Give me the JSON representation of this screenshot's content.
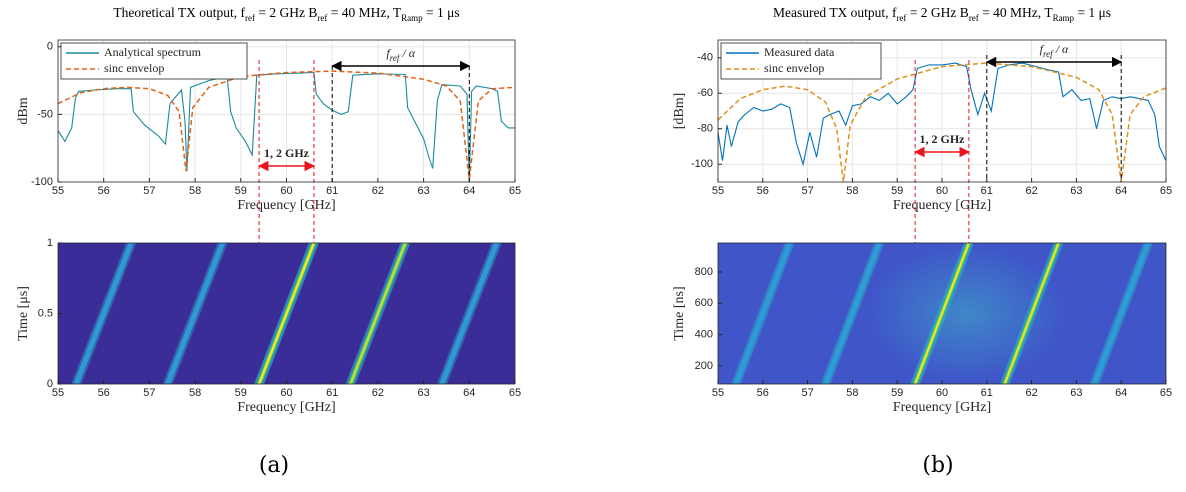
{
  "chart_data": [
    {
      "type": "line",
      "title_parts": [
        {
          "text": "Theoretical TX output, "
        },
        {
          "text": "f"
        },
        {
          "text": "ref",
          "sub": true
        },
        {
          "text": " = 2 GHz "
        },
        {
          "text": "B"
        },
        {
          "text": "ref",
          "sub": true
        },
        {
          "text": " = 40 MHz, "
        },
        {
          "text": "T"
        },
        {
          "text": "Ramp",
          "sub": true
        },
        {
          "text": " = 1 μs"
        }
      ],
      "xlabel": "Frequency [GHz]",
      "ylabel": "dBm",
      "xlim": [
        55,
        65
      ],
      "xticks": [
        55,
        56,
        57,
        58,
        59,
        60,
        61,
        62,
        63,
        64,
        65
      ],
      "ylim": [
        -100,
        5
      ],
      "yticks": [
        -100,
        -50,
        0
      ],
      "grid": true,
      "legend": "upper left",
      "series": [
        {
          "name": "Analytical spectrum",
          "color": "#1a8a9e",
          "dashed": false,
          "x": [
            55.0,
            55.15,
            55.3,
            55.38,
            55.45,
            55.8,
            56.3,
            56.6,
            56.65,
            56.9,
            57.2,
            57.35,
            57.45,
            57.7,
            57.78,
            57.82,
            57.9,
            58.3,
            58.7,
            58.78,
            58.9,
            59.1,
            59.25,
            59.35,
            59.8,
            60.3,
            60.6,
            60.65,
            60.8,
            61.0,
            61.2,
            61.35,
            61.45,
            62.0,
            62.6,
            62.65,
            62.8,
            63.0,
            63.1,
            63.2,
            63.3,
            63.4,
            63.8,
            63.95,
            64.0,
            64.05,
            64.15,
            64.5,
            64.62,
            64.7,
            64.85,
            65.0
          ],
          "values": [
            -62,
            -70,
            -60,
            -38,
            -33,
            -32,
            -31,
            -31,
            -48,
            -58,
            -66,
            -72,
            -42,
            -32,
            -55,
            -92,
            -30,
            -25,
            -22,
            -48,
            -60,
            -70,
            -80,
            -21,
            -20,
            -19.5,
            -19,
            -35,
            -42,
            -47,
            -50,
            -48,
            -21,
            -20,
            -20.5,
            -45,
            -55,
            -68,
            -80,
            -90,
            -40,
            -28,
            -29,
            -35,
            -100,
            -33,
            -29,
            -31,
            -33,
            -55,
            -60,
            -60
          ]
        },
        {
          "name": "sinc envelop",
          "color": "#e0621b",
          "dashed": true,
          "x": [
            55.0,
            55.5,
            56.0,
            56.5,
            57.0,
            57.4,
            57.65,
            57.8,
            57.95,
            58.3,
            59.0,
            60.0,
            61.0,
            62.0,
            63.0,
            63.5,
            63.8,
            64.0,
            64.2,
            64.5,
            65.0
          ],
          "values": [
            -42,
            -34,
            -31,
            -30,
            -31,
            -36,
            -48,
            -92,
            -45,
            -30,
            -22,
            -19,
            -18,
            -19.5,
            -24,
            -29,
            -40,
            -98,
            -40,
            -31,
            -30
          ]
        }
      ],
      "annotations": [
        {
          "parts": [
            {
              "text": "1, 2 GHz"
            }
          ],
          "span": [
            59.4,
            60.6
          ],
          "color": "#e8141e"
        },
        {
          "parts": [
            {
              "text": "f"
            },
            {
              "text": "ref",
              "sub": true
            },
            {
              "text": " / α"
            }
          ],
          "span": [
            61,
            64
          ],
          "color": "#000000"
        }
      ]
    },
    {
      "type": "spectrogram",
      "xlabel": "Frequency [GHz]",
      "ylabel": "Time [μs]",
      "xlim": [
        55,
        65
      ],
      "xticks": [
        55,
        56,
        57,
        58,
        59,
        60,
        61,
        62,
        63,
        64,
        65
      ],
      "ylim": [
        0,
        1
      ],
      "yticks": [
        0,
        0.5,
        1
      ],
      "background": "#3a2d98",
      "stripes": [
        {
          "x": [
            55.4,
            56.6
          ],
          "y": [
            0,
            1
          ],
          "level": 0.3
        },
        {
          "x": [
            57.4,
            58.6
          ],
          "y": [
            0,
            1
          ],
          "level": 0.3
        },
        {
          "x": [
            59.4,
            60.6
          ],
          "y": [
            0,
            1
          ],
          "level": 1
        },
        {
          "x": [
            61.4,
            62.6
          ],
          "y": [
            0,
            1
          ],
          "level": 0.75
        },
        {
          "x": [
            63.4,
            64.6
          ],
          "y": [
            0,
            1
          ],
          "level": 0.3
        }
      ]
    },
    {
      "type": "line",
      "title_parts": [
        {
          "text": "Measured TX output, "
        },
        {
          "text": "f"
        },
        {
          "text": "ref",
          "sub": true
        },
        {
          "text": " = 2 GHz "
        },
        {
          "text": "B"
        },
        {
          "text": "ref",
          "sub": true
        },
        {
          "text": " = 40 MHz, "
        },
        {
          "text": "T"
        },
        {
          "text": "Ramp",
          "sub": true
        },
        {
          "text": " = 1 μs"
        }
      ],
      "xlabel": "Frequency [GHz]",
      "ylabel": "[dBm]",
      "xlim": [
        55,
        65
      ],
      "xticks": [
        55,
        56,
        57,
        58,
        59,
        60,
        61,
        62,
        63,
        64,
        65
      ],
      "ylim": [
        -110,
        -30
      ],
      "yticks": [
        -100,
        -80,
        -60,
        -40
      ],
      "grid": true,
      "legend": "upper left",
      "series": [
        {
          "name": "Measured data",
          "color": "#0072bd",
          "dashed": false,
          "x": [
            55.0,
            55.1,
            55.2,
            55.3,
            55.45,
            55.6,
            55.8,
            56.0,
            56.2,
            56.4,
            56.6,
            56.75,
            56.9,
            57.05,
            57.2,
            57.35,
            57.5,
            57.7,
            57.85,
            58.0,
            58.2,
            58.4,
            58.6,
            58.8,
            59.0,
            59.2,
            59.35,
            59.45,
            59.7,
            60.0,
            60.3,
            60.55,
            60.65,
            60.8,
            60.95,
            61.1,
            61.25,
            61.5,
            61.8,
            62.1,
            62.4,
            62.6,
            62.7,
            62.9,
            63.1,
            63.3,
            63.45,
            63.6,
            63.8,
            64.0,
            64.2,
            64.4,
            64.6,
            64.75,
            64.85,
            65.0
          ],
          "values": [
            -82,
            -98,
            -78,
            -90,
            -76,
            -72,
            -68,
            -70,
            -69,
            -66,
            -68,
            -88,
            -100,
            -82,
            -96,
            -74,
            -72,
            -70,
            -78,
            -67,
            -66,
            -62,
            -64,
            -60,
            -66,
            -62,
            -58,
            -46,
            -44,
            -44,
            -43,
            -45,
            -58,
            -72,
            -60,
            -70,
            -46,
            -44,
            -43,
            -45,
            -47,
            -48,
            -62,
            -58,
            -64,
            -63,
            -80,
            -64,
            -62,
            -63,
            -62,
            -63,
            -64,
            -72,
            -90,
            -98
          ]
        },
        {
          "name": "sinc envelop",
          "color": "#e0901b",
          "dashed": true,
          "x": [
            55.0,
            55.5,
            56.0,
            56.5,
            57.0,
            57.4,
            57.65,
            57.8,
            57.95,
            58.3,
            59.0,
            60.0,
            61.0,
            62.0,
            63.0,
            63.5,
            63.8,
            64.0,
            64.2,
            64.5,
            65.0
          ],
          "values": [
            -75,
            -63,
            -58,
            -56,
            -58,
            -65,
            -80,
            -110,
            -78,
            -62,
            -52,
            -45,
            -43,
            -45,
            -51,
            -58,
            -72,
            -110,
            -72,
            -62,
            -57
          ]
        }
      ],
      "annotations": [
        {
          "parts": [
            {
              "text": "1, 2 GHz"
            }
          ],
          "span": [
            59.4,
            60.6
          ],
          "color": "#e8141e"
        },
        {
          "parts": [
            {
              "text": "f"
            },
            {
              "text": "ref",
              "sub": true
            },
            {
              "text": " / α"
            }
          ],
          "span": [
            61,
            64
          ],
          "color": "#000000"
        }
      ]
    },
    {
      "type": "spectrogram",
      "xlabel": "Frequency [GHz]",
      "ylabel": "Time [ns]",
      "xlim": [
        55,
        65
      ],
      "xticks": [
        55,
        56,
        57,
        58,
        59,
        60,
        61,
        62,
        63,
        64,
        65
      ],
      "ylim": [
        85,
        985
      ],
      "yticks": [
        200,
        400,
        600,
        800
      ],
      "background": "#3f55c8",
      "stripes": [
        {
          "x": [
            55.4,
            56.6
          ],
          "y": [
            85,
            985
          ],
          "level": 0.45
        },
        {
          "x": [
            57.4,
            58.6
          ],
          "y": [
            85,
            985
          ],
          "level": 0.5
        },
        {
          "x": [
            59.4,
            60.6
          ],
          "y": [
            85,
            985
          ],
          "level": 0.95
        },
        {
          "x": [
            61.4,
            62.6
          ],
          "y": [
            85,
            985
          ],
          "level": 0.9
        },
        {
          "x": [
            63.4,
            64.6
          ],
          "y": [
            85,
            985
          ],
          "level": 0.5
        }
      ]
    }
  ],
  "panel_labels": [
    "(a)",
    "(b)"
  ]
}
